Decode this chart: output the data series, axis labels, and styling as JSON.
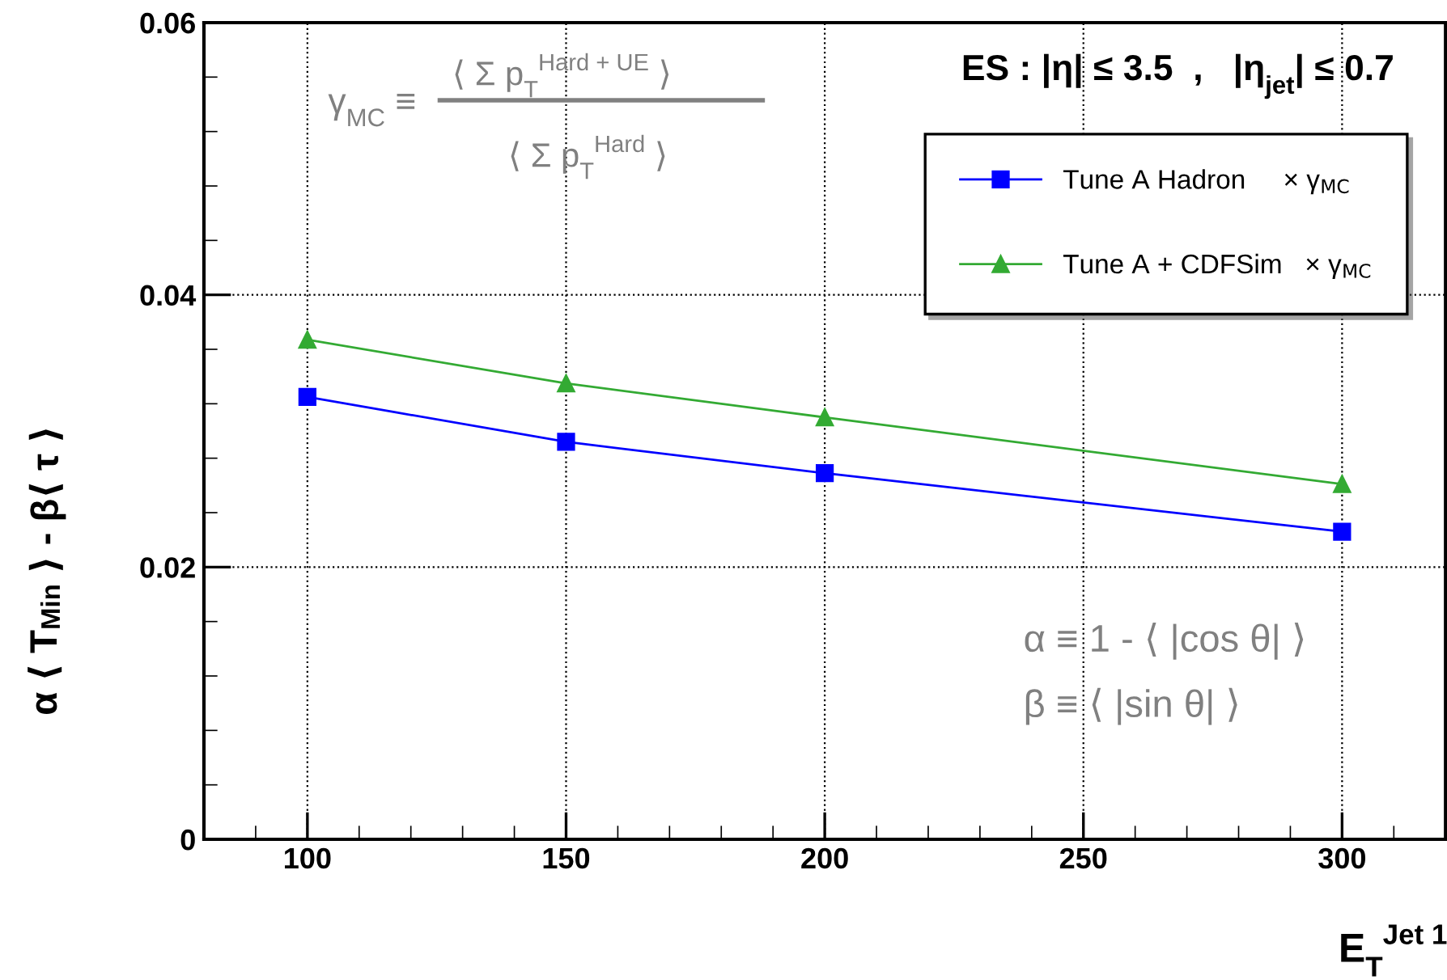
{
  "chart_data": {
    "type": "line",
    "xlabel": "E$_{T}$$^{Jet 1}$",
    "ylabel": "α ⟨ T$_{Min}$ ⟩ - β⟨ τ ⟩",
    "x": [
      100,
      150,
      200,
      300
    ],
    "series": [
      {
        "name": "Tune A Hadron     × γ$_{MC}$",
        "color": "#0000ff",
        "marker": "square",
        "values": [
          0.0325,
          0.0292,
          0.0269,
          0.0226
        ]
      },
      {
        "name": "Tune A + CDFSim   × γ$_{MC}$",
        "color": "#33aa33",
        "marker": "triangle",
        "values": [
          0.0367,
          0.0335,
          0.031,
          0.0261
        ]
      }
    ],
    "xlim": [
      80,
      320
    ],
    "xticks": [
      100,
      150,
      200,
      250,
      300
    ],
    "ylim": [
      0,
      0.06
    ],
    "yticks": [
      {
        "value": 0,
        "label": "0"
      },
      0.02,
      0.04,
      0.06
    ],
    "grid": true,
    "legend": "top right",
    "line_style": "solid",
    "annotations": [
      "ES : |η| ≤ 3.5  ,   |η$_{jet}$| ≤ 0.7",
      "γ$_{MC}$ ≡",
      "⟨ Σ p$_{T}$$^{Hard + UE}$ ⟩",
      "⟨ Σ p$_{T}$$^{Hard}$ ⟩",
      "α ≡ 1 - ⟨ |cos θ| ⟩",
      "β ≡ ⟨ |sin θ| ⟩"
    ]
  }
}
